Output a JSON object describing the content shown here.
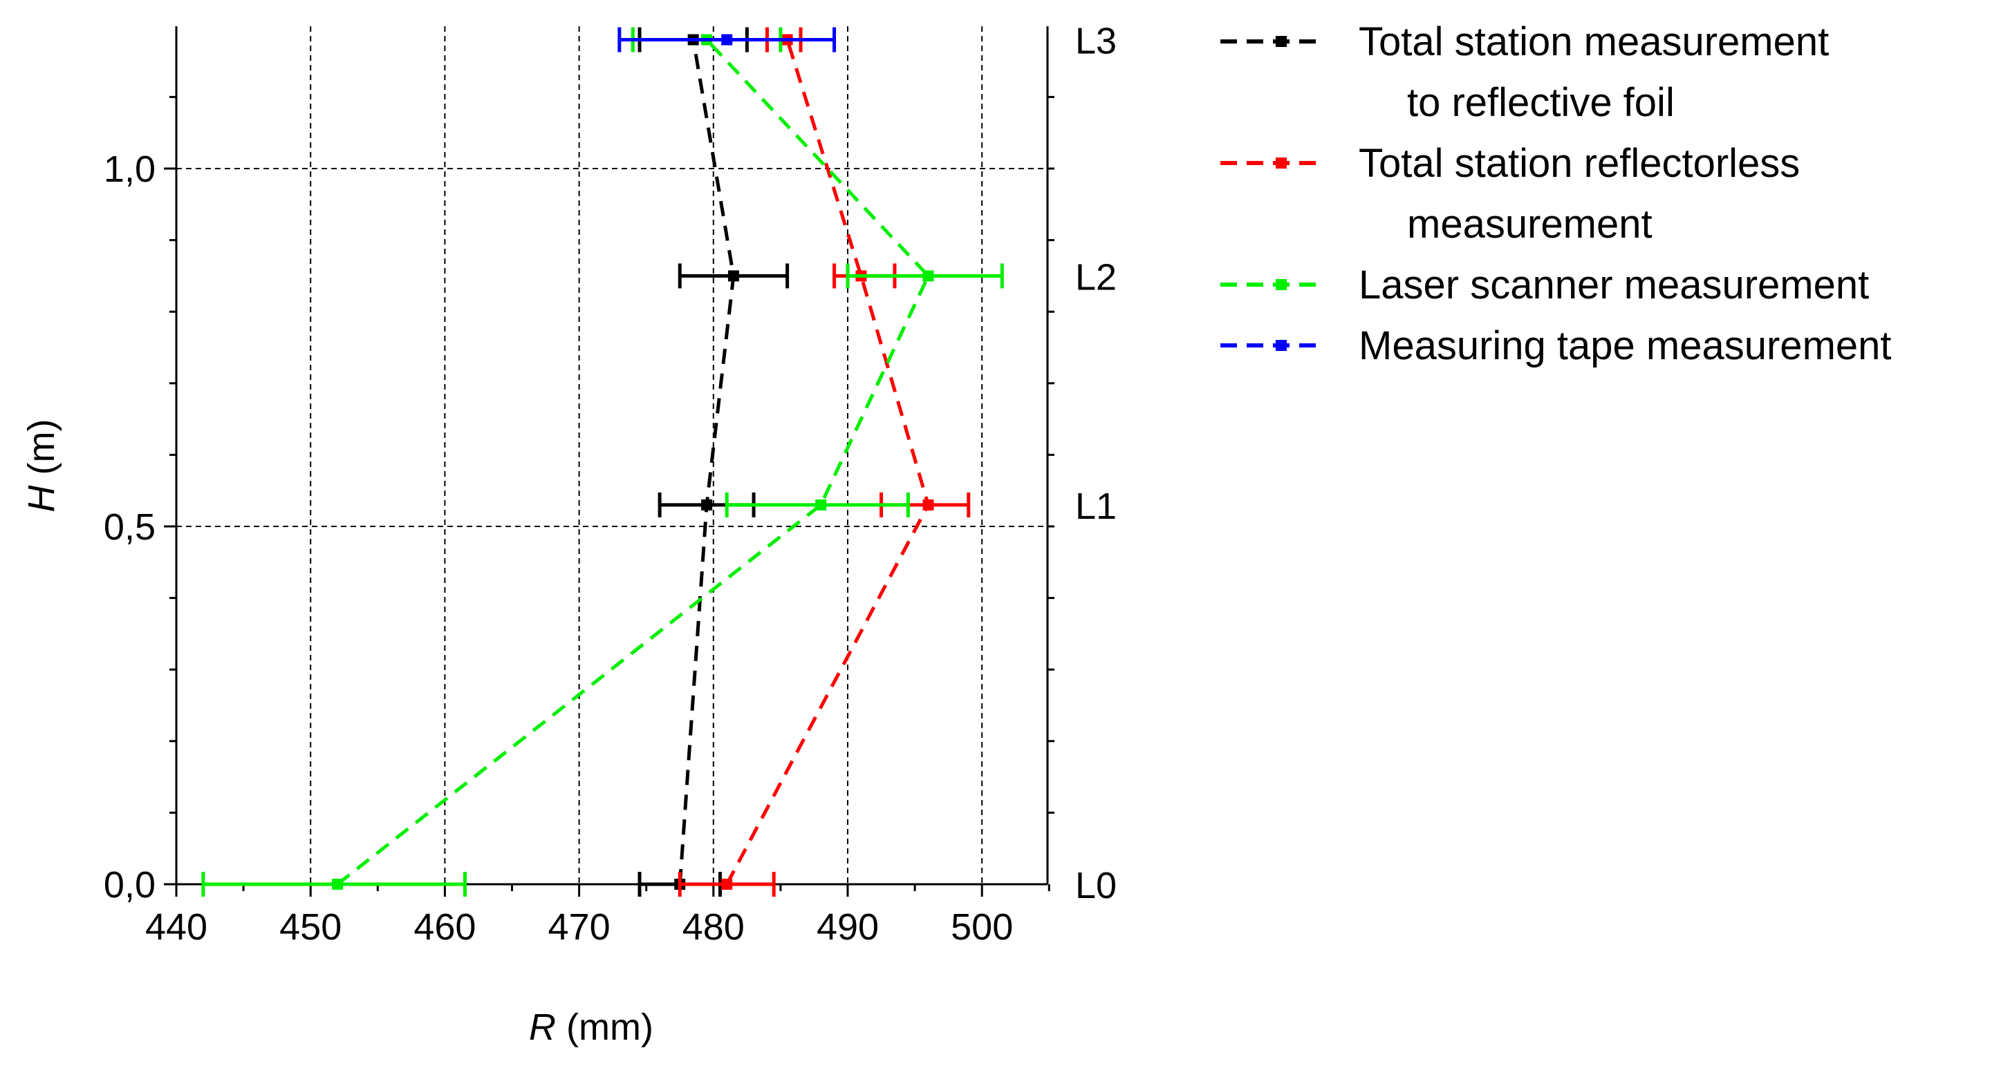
{
  "chart_data": {
    "type": "line",
    "xlabel": {
      "italic": "R",
      "rest": " (mm)"
    },
    "ylabel": {
      "italic": "H",
      "rest": " (m)"
    },
    "xlim": [
      440,
      505
    ],
    "ylim": [
      0,
      1.2
    ],
    "xticks": [
      {
        "value": 440,
        "label": "440"
      },
      {
        "value": 450,
        "label": "450"
      },
      {
        "value": 460,
        "label": "460"
      },
      {
        "value": 470,
        "label": "470"
      },
      {
        "value": 480,
        "label": "480"
      },
      {
        "value": 490,
        "label": "490"
      },
      {
        "value": 500,
        "label": "500"
      }
    ],
    "yticks": [
      {
        "value": 0.0,
        "label": "0,0"
      },
      {
        "value": 0.5,
        "label": "0,5"
      },
      {
        "value": 1.0,
        "label": "1,0"
      }
    ],
    "grid": true,
    "levels": [
      {
        "label": "L0",
        "h": 0.0
      },
      {
        "label": "L1",
        "h": 0.53
      },
      {
        "label": "L2",
        "h": 0.85
      },
      {
        "label": "L3",
        "h": 1.18
      }
    ],
    "series": [
      {
        "name": "Total station measurement to reflective foil",
        "legend_lines": [
          "Total station measurement",
          "to reflective foil"
        ],
        "color": "#000000",
        "points": [
          {
            "level": "L0",
            "r": 477.5,
            "h": 0.0,
            "lo": 474.5,
            "hi": 480.5
          },
          {
            "level": "L1",
            "r": 479.5,
            "h": 0.53,
            "lo": 476.0,
            "hi": 483.0
          },
          {
            "level": "L2",
            "r": 481.5,
            "h": 0.85,
            "lo": 477.5,
            "hi": 485.5
          },
          {
            "level": "L3",
            "r": 478.5,
            "h": 1.18,
            "lo": 474.5,
            "hi": 482.5
          }
        ]
      },
      {
        "name": "Total station reflectorless measurement",
        "legend_lines": [
          "Total station reflectorless",
          "measurement"
        ],
        "color": "#ff0000",
        "points": [
          {
            "level": "L0",
            "r": 481.0,
            "h": 0.0,
            "lo": 477.5,
            "hi": 484.5
          },
          {
            "level": "L1",
            "r": 496.0,
            "h": 0.53,
            "lo": 492.5,
            "hi": 499.0
          },
          {
            "level": "L2",
            "r": 491.0,
            "h": 0.85,
            "lo": 489.0,
            "hi": 493.5
          },
          {
            "level": "L3",
            "r": 485.5,
            "h": 1.18,
            "lo": 484.0,
            "hi": 486.5
          }
        ]
      },
      {
        "name": "Laser scanner measurement",
        "legend_lines": [
          "Laser scanner measurement"
        ],
        "color": "#00ee00",
        "points": [
          {
            "level": "L0",
            "r": 452.0,
            "h": 0.0,
            "lo": 442.0,
            "hi": 461.5
          },
          {
            "level": "L1",
            "r": 488.0,
            "h": 0.53,
            "lo": 481.0,
            "hi": 494.5
          },
          {
            "level": "L2",
            "r": 496.0,
            "h": 0.85,
            "lo": 490.0,
            "hi": 501.5
          },
          {
            "level": "L3",
            "r": 479.5,
            "h": 1.18,
            "lo": 474.0,
            "hi": 485.0
          }
        ]
      },
      {
        "name": "Measuring tape measurement",
        "legend_lines": [
          "Measuring tape measurement"
        ],
        "color": "#0000ff",
        "points": [
          {
            "level": "L3",
            "r": 481.0,
            "h": 1.18,
            "lo": 473.0,
            "hi": 489.0
          }
        ]
      }
    ]
  }
}
